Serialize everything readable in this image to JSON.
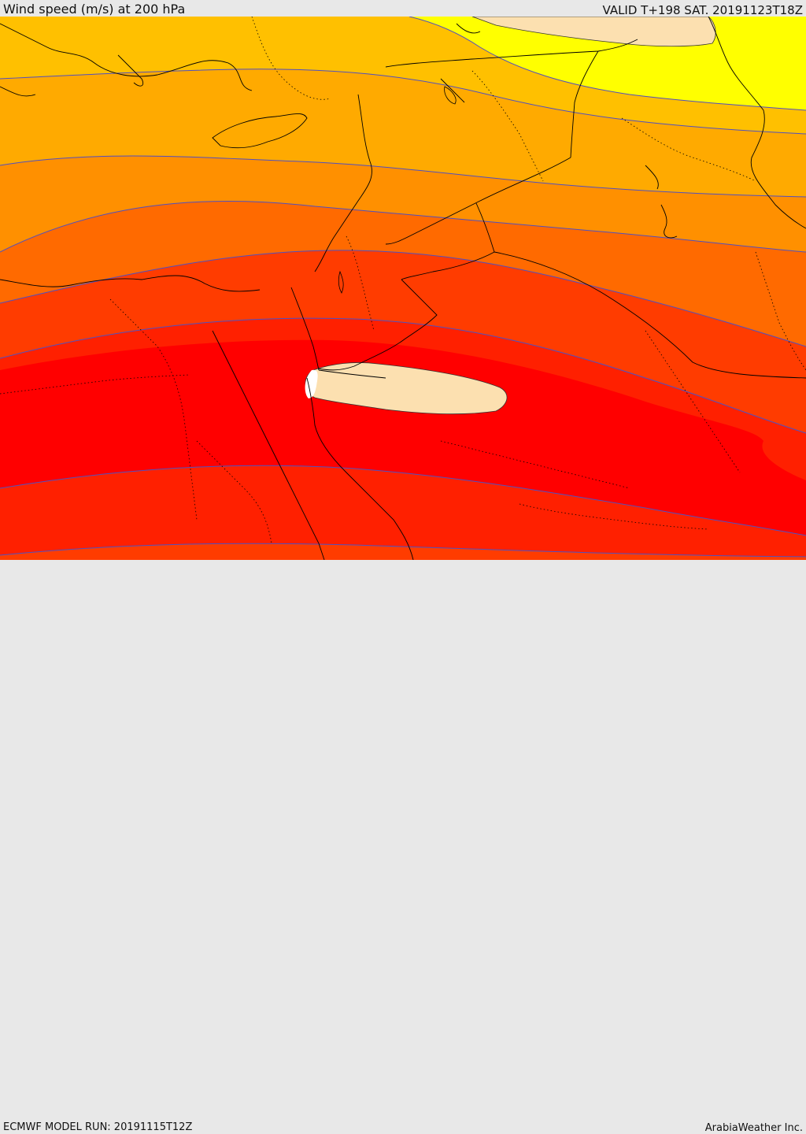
{
  "header": {
    "title": "Wind speed (m/s) at 200 hPa",
    "valid": "VALID T+198 SAT. 20191123T18Z"
  },
  "footer": {
    "model_run": "ECMWF MODEL RUN: 20191115T12Z",
    "credit": "ArabiaWeather Inc."
  },
  "colors": {
    "band_yellow": "#ffff00",
    "band_gold": "#ffc000",
    "band_amber": "#ffaa00",
    "band_orange": "#ff9000",
    "band_dark_orange": "#ff6a00",
    "band_red_orange": "#ff3c00",
    "band_red": "#ff2000",
    "band_core_red": "#ff0000",
    "max_fill": "#fce0b0",
    "contour_line": "#5050c0",
    "borders": "#000000"
  },
  "map": {
    "region": "Eastern Mediterranean / Levant / Northern Arabia / Egypt",
    "field": "jet stream wind speed bands"
  }
}
